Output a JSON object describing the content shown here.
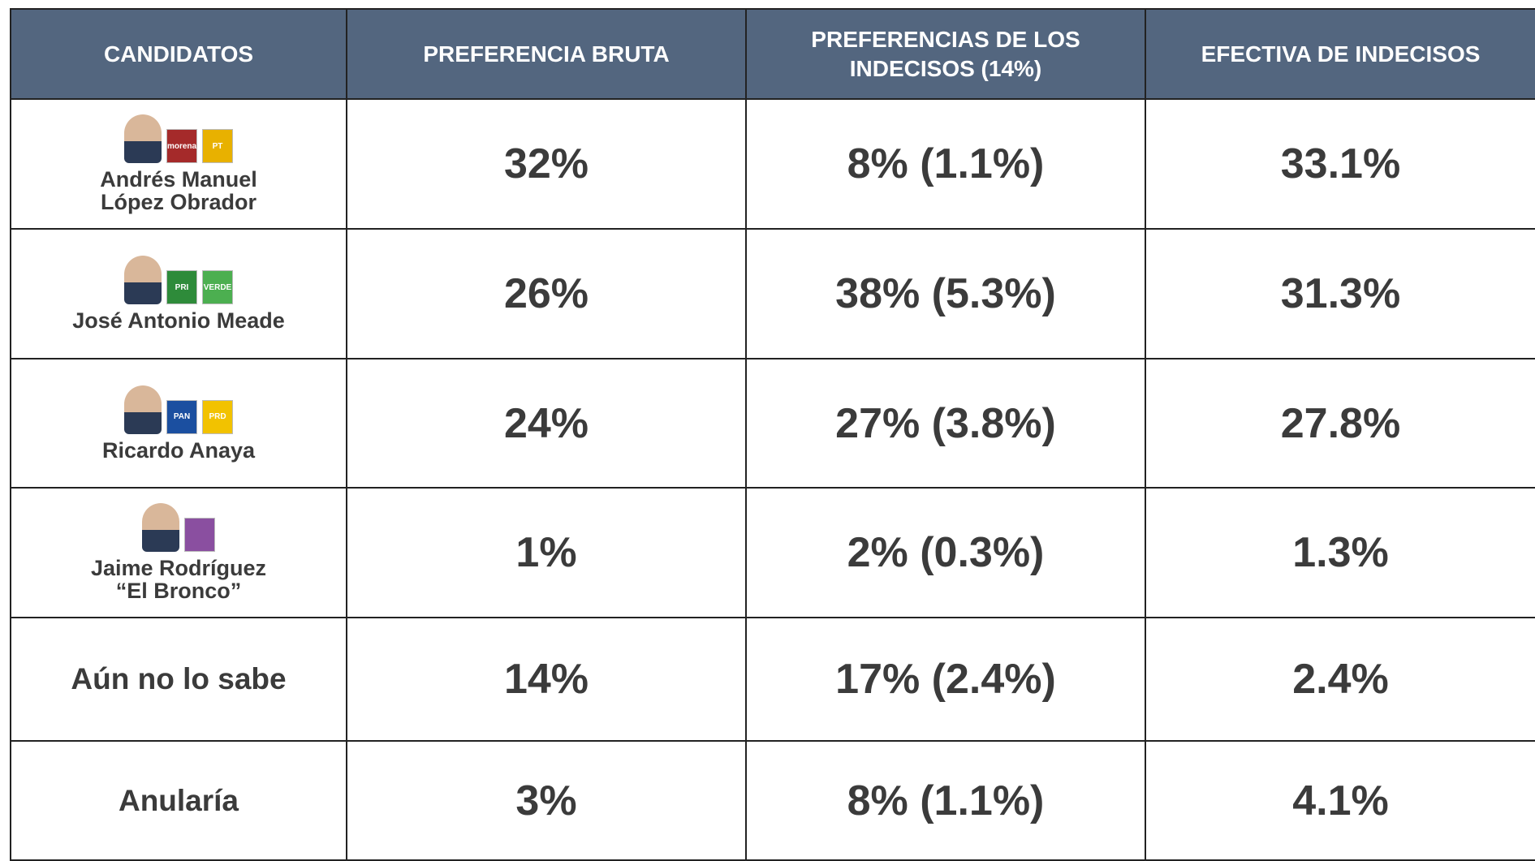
{
  "header": {
    "columns": [
      [
        "CANDIDATOS"
      ],
      [
        "PREFERENCIA BRUTA"
      ],
      [
        "PREFERENCIAS DE LOS",
        "INDECISOS (14%)"
      ],
      [
        "EFECTIVA DE INDECISOS"
      ]
    ]
  },
  "table": {
    "rows": [
      {
        "name": [
          "Andrés Manuel",
          "López Obrador"
        ],
        "candidate": true,
        "parties": [
          "morena",
          "PT"
        ],
        "cells": [
          "32%",
          "8% (1.1%)",
          "33.1%"
        ]
      },
      {
        "name": [
          "José Antonio Meade"
        ],
        "candidate": true,
        "parties": [
          "PRI",
          "VERDE"
        ],
        "cells": [
          "26%",
          "38% (5.3%)",
          "31.3%"
        ]
      },
      {
        "name": [
          "Ricardo Anaya"
        ],
        "candidate": true,
        "parties": [
          "PAN",
          "PRD"
        ],
        "cells": [
          "24%",
          "27% (3.8%)",
          "27.8%"
        ]
      },
      {
        "name": [
          "Jaime Rodríguez",
          "“El Bronco”"
        ],
        "candidate": true,
        "parties": [],
        "cells": [
          "1%",
          "2% (0.3%)",
          "1.3%"
        ]
      },
      {
        "name": [
          "Aún no lo sabe"
        ],
        "candidate": false,
        "cells": [
          "14%",
          "17% (2.4%)",
          "2.4%"
        ]
      },
      {
        "name": [
          "Anularía"
        ],
        "candidate": false,
        "cells": [
          "3%",
          "8% (1.1%)",
          "4.1%"
        ]
      }
    ]
  }
}
